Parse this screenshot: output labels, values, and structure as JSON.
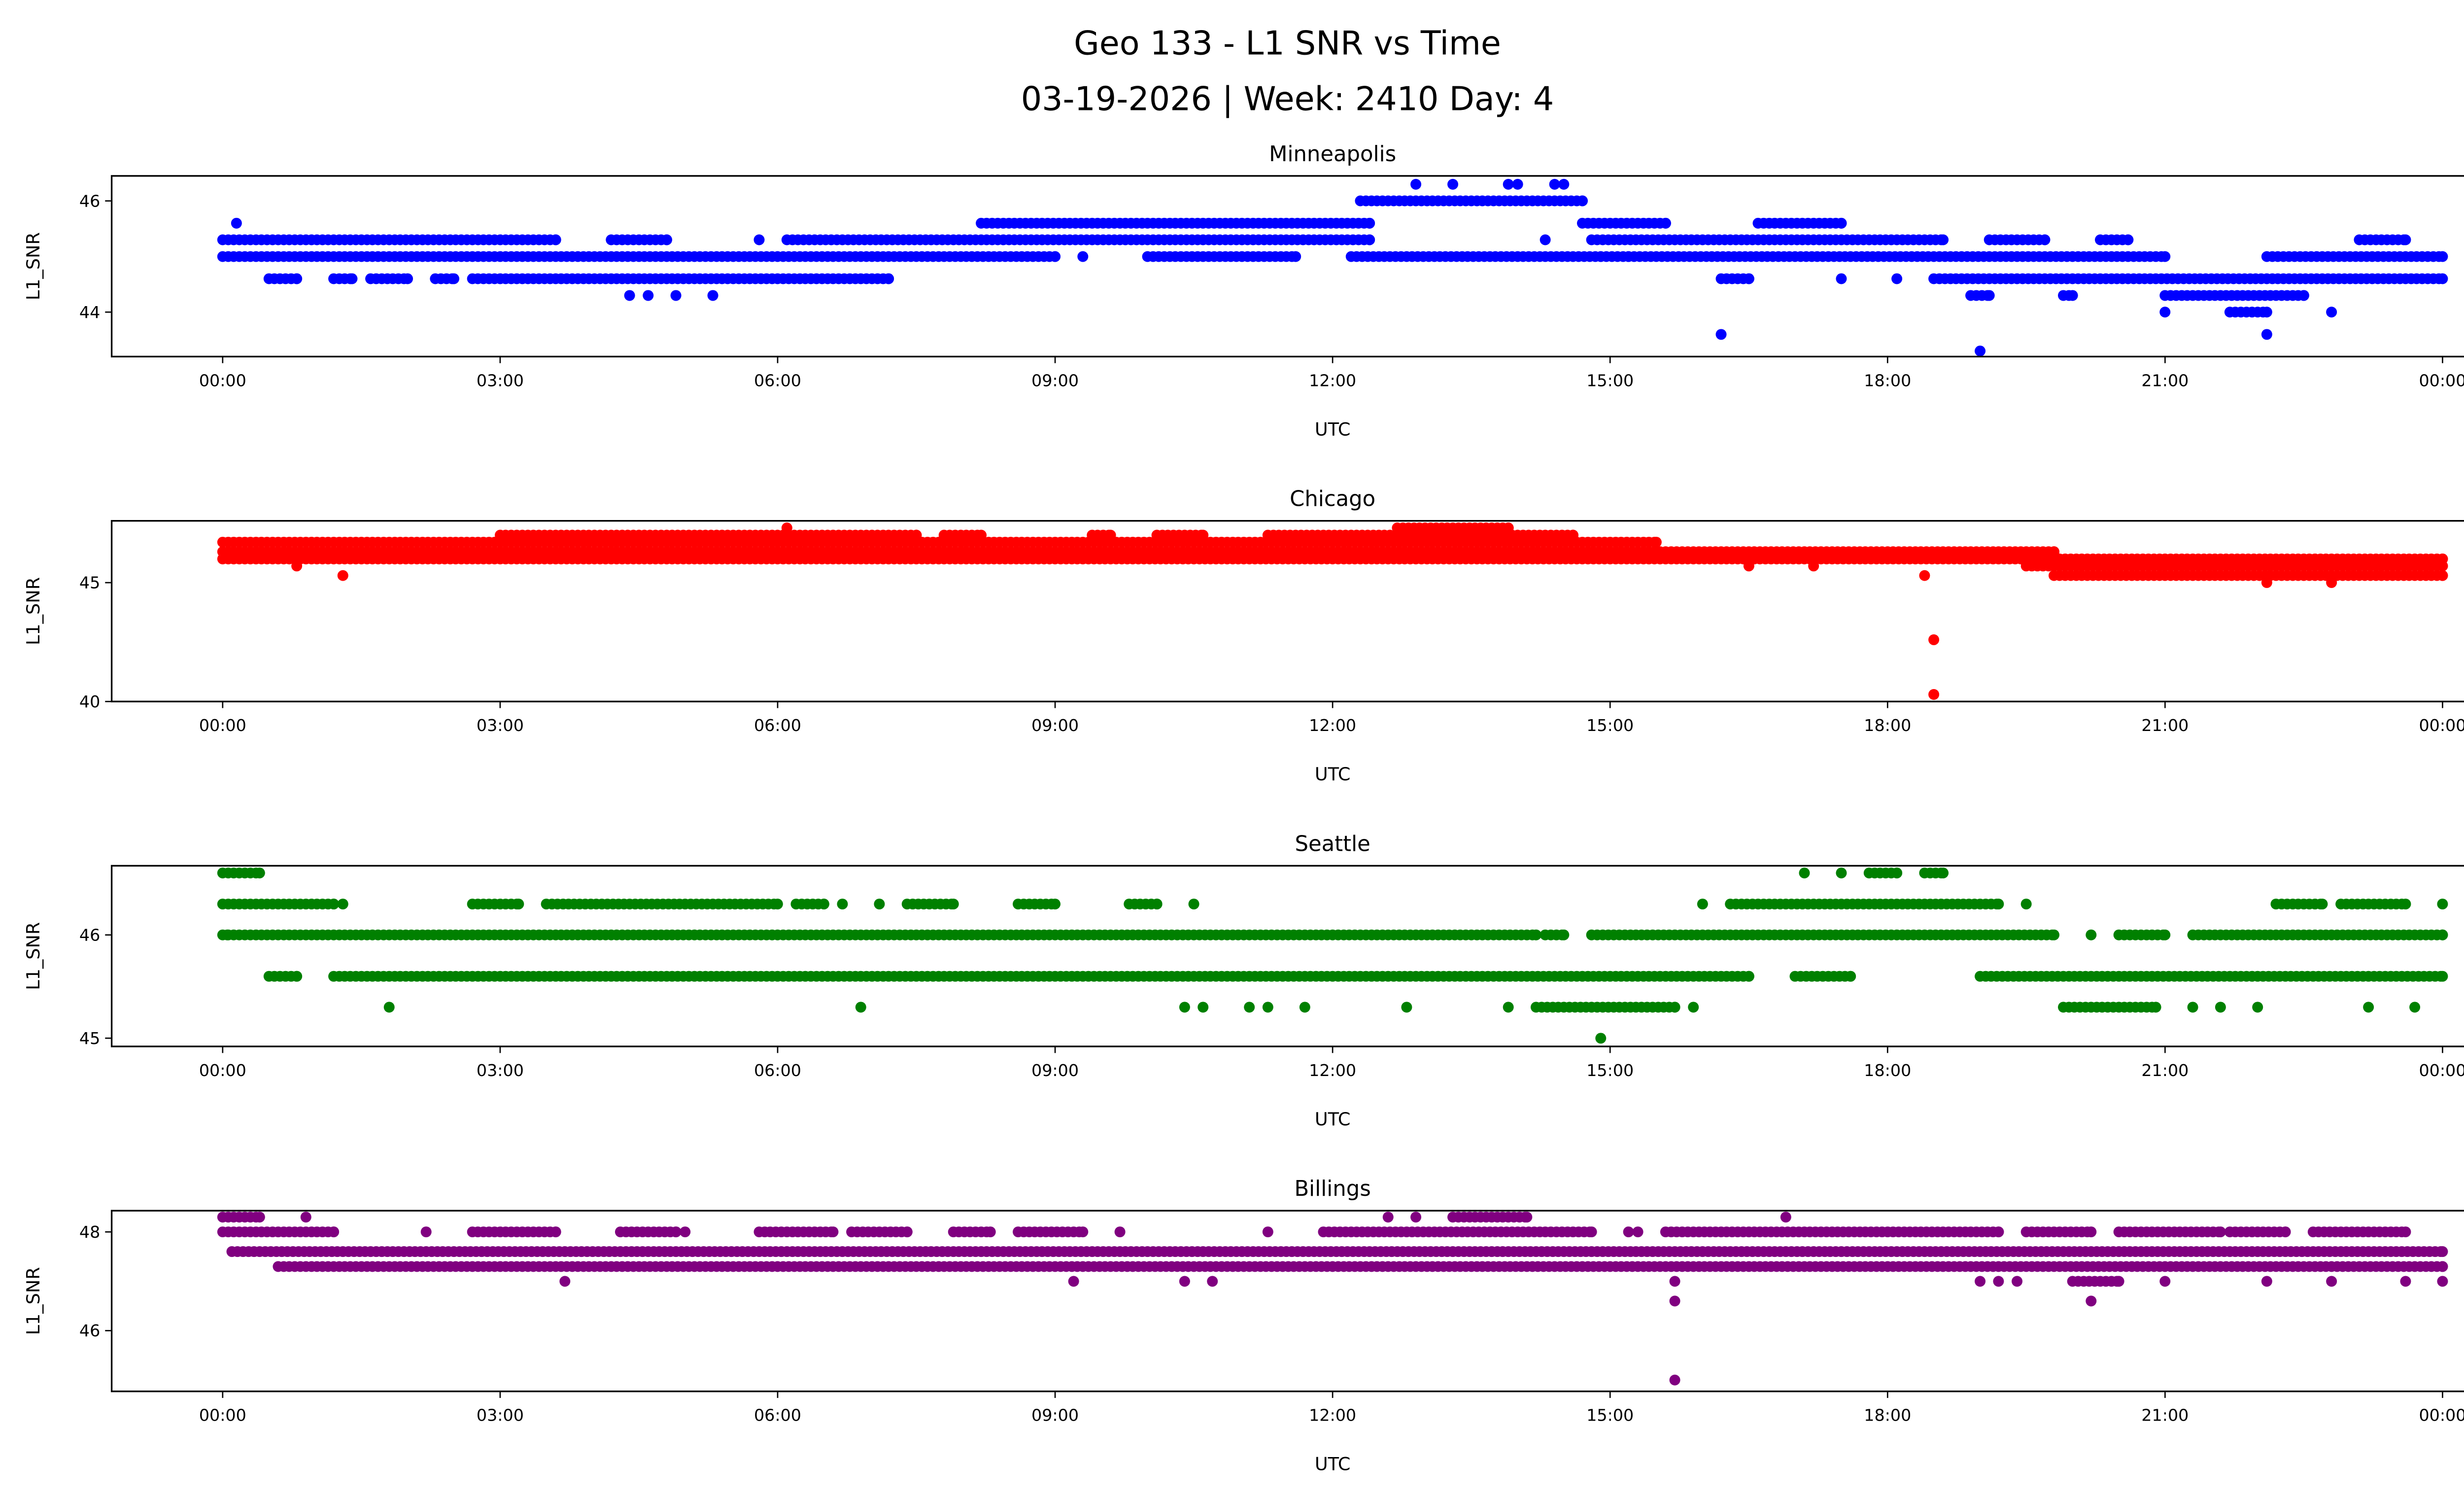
{
  "title_line1": "Geo 133 - L1 SNR vs Time",
  "title_line2": "03-19-2026 | Week: 2410 Day: 4",
  "chart_data": [
    {
      "type": "scatter",
      "title": "Minneapolis",
      "xlabel": "UTC",
      "ylabel": "L1_SNR",
      "color": "#0000ff",
      "xlim": [
        -1.2,
        25.2
      ],
      "ylim": [
        43.2,
        46.45
      ],
      "xticks": [
        0,
        3,
        6,
        9,
        12,
        15,
        18,
        21,
        24
      ],
      "xtick_labels": [
        "00:00",
        "03:00",
        "06:00",
        "09:00",
        "12:00",
        "15:00",
        "18:00",
        "21:00",
        "00:00"
      ],
      "yticks": [
        44,
        46
      ],
      "ytick_labels": [
        "44",
        "46"
      ],
      "bands": [
        {
          "y": 46.0,
          "ranges": [
            [
              12.3,
              14.7
            ]
          ]
        },
        {
          "y": 45.6,
          "ranges": [
            [
              8.2,
              12.4
            ],
            [
              14.7,
              15.6
            ],
            [
              16.6,
              17.5
            ]
          ]
        },
        {
          "y": 45.3,
          "ranges": [
            [
              0,
              3.6
            ],
            [
              4.2,
              4.8
            ],
            [
              6.1,
              12.4
            ],
            [
              14.8,
              18.6
            ],
            [
              19.1,
              19.7
            ],
            [
              20.3,
              20.6
            ],
            [
              23.1,
              23.6
            ]
          ]
        },
        {
          "y": 45.0,
          "ranges": [
            [
              0,
              9.0
            ],
            [
              10.0,
              11.6
            ],
            [
              12.2,
              21.0
            ],
            [
              22.1,
              24.0
            ]
          ]
        },
        {
          "y": 44.6,
          "ranges": [
            [
              0.5,
              0.8
            ],
            [
              1.2,
              1.4
            ],
            [
              1.6,
              2.0
            ],
            [
              2.3,
              2.5
            ],
            [
              2.7,
              7.2
            ],
            [
              16.2,
              16.5
            ],
            [
              18.5,
              24.0
            ]
          ]
        },
        {
          "y": 44.3,
          "ranges": [
            [
              18.9,
              19.1
            ],
            [
              19.9,
              20.0
            ],
            [
              21.0,
              22.5
            ]
          ]
        },
        {
          "y": 44.0,
          "ranges": [
            [
              21.7,
              22.1
            ]
          ]
        }
      ],
      "points": [
        [
          0.15,
          45.6
        ],
        [
          12.9,
          46.3
        ],
        [
          13.3,
          46.3
        ],
        [
          13.9,
          46.3
        ],
        [
          14.0,
          46.3
        ],
        [
          14.4,
          46.3
        ],
        [
          14.5,
          46.3
        ],
        [
          17.5,
          44.6
        ],
        [
          18.1,
          44.6
        ],
        [
          4.4,
          44.3
        ],
        [
          4.6,
          44.3
        ],
        [
          4.9,
          44.3
        ],
        [
          5.3,
          44.3
        ],
        [
          21.0,
          44.0
        ],
        [
          22.8,
          44.0
        ],
        [
          16.2,
          43.6
        ],
        [
          22.1,
          43.6
        ],
        [
          19.0,
          43.3
        ],
        [
          5.8,
          45.3
        ],
        [
          9.3,
          45.0
        ],
        [
          14.3,
          45.3
        ],
        [
          14.9,
          45.0
        ],
        [
          15.2,
          45.0
        ]
      ]
    },
    {
      "type": "scatter",
      "title": "Chicago",
      "xlabel": "UTC",
      "ylabel": "L1_SNR",
      "color": "#ff0000",
      "xlim": [
        -1.2,
        25.2
      ],
      "ylim": [
        40.0,
        47.6
      ],
      "xticks": [
        0,
        3,
        6,
        9,
        12,
        15,
        18,
        21,
        24
      ],
      "xtick_labels": [
        "00:00",
        "03:00",
        "06:00",
        "09:00",
        "12:00",
        "15:00",
        "18:00",
        "21:00",
        "00:00"
      ],
      "yticks": [
        40,
        45
      ],
      "ytick_labels": [
        "40",
        "45"
      ],
      "bands": [
        {
          "y": 47.3,
          "ranges": [
            [
              12.7,
              13.9
            ]
          ]
        },
        {
          "y": 47.0,
          "ranges": [
            [
              3.0,
              7.5
            ],
            [
              7.8,
              8.2
            ],
            [
              9.4,
              9.6
            ],
            [
              10.1,
              10.6
            ],
            [
              11.3,
              14.6
            ]
          ]
        },
        {
          "y": 46.7,
          "ranges": [
            [
              0,
              15.5
            ]
          ]
        },
        {
          "y": 46.3,
          "ranges": [
            [
              0,
              19.8
            ]
          ]
        },
        {
          "y": 46.0,
          "ranges": [
            [
              0,
              24
            ]
          ]
        },
        {
          "y": 45.7,
          "ranges": [
            [
              19.5,
              24
            ]
          ]
        },
        {
          "y": 45.3,
          "ranges": [
            [
              19.8,
              24
            ]
          ]
        }
      ],
      "points": [
        [
          6.1,
          47.3
        ],
        [
          1.3,
          45.3
        ],
        [
          0.8,
          45.7
        ],
        [
          16.5,
          45.7
        ],
        [
          17.2,
          45.7
        ],
        [
          18.5,
          42.6
        ],
        [
          18.5,
          40.3
        ],
        [
          22.1,
          45.0
        ],
        [
          22.8,
          45.0
        ],
        [
          18.4,
          45.3
        ]
      ]
    },
    {
      "type": "scatter",
      "title": "Seattle",
      "xlabel": "UTC",
      "ylabel": "L1_SNR",
      "color": "#008000",
      "xlim": [
        -1.2,
        25.2
      ],
      "ylim": [
        44.92,
        46.67
      ],
      "xticks": [
        0,
        3,
        6,
        9,
        12,
        15,
        18,
        21,
        24
      ],
      "xtick_labels": [
        "00:00",
        "03:00",
        "06:00",
        "09:00",
        "12:00",
        "15:00",
        "18:00",
        "21:00",
        "00:00"
      ],
      "yticks": [
        45,
        46
      ],
      "ytick_labels": [
        "45",
        "46"
      ],
      "bands": [
        {
          "y": 46.6,
          "ranges": [
            [
              0,
              0.4
            ],
            [
              17.8,
              18.1
            ],
            [
              18.4,
              18.6
            ]
          ]
        },
        {
          "y": 46.3,
          "ranges": [
            [
              0,
              1.2
            ],
            [
              2.7,
              3.2
            ],
            [
              3.5,
              6.0
            ],
            [
              6.2,
              6.5
            ],
            [
              7.4,
              7.9
            ],
            [
              8.6,
              9.0
            ],
            [
              9.8,
              10.1
            ],
            [
              16.3,
              19.2
            ],
            [
              22.2,
              22.7
            ],
            [
              22.9,
              23.6
            ]
          ]
        },
        {
          "y": 46.0,
          "ranges": [
            [
              0,
              14.2
            ],
            [
              14.3,
              14.5
            ],
            [
              14.8,
              19.8
            ],
            [
              20.5,
              21.0
            ],
            [
              21.3,
              24
            ]
          ]
        },
        {
          "y": 45.6,
          "ranges": [
            [
              0.5,
              0.8
            ],
            [
              1.2,
              16.5
            ],
            [
              17.0,
              17.6
            ],
            [
              19.0,
              24
            ]
          ]
        },
        {
          "y": 45.3,
          "ranges": [
            [
              14.2,
              15.7
            ],
            [
              19.9,
              20.9
            ]
          ]
        }
      ],
      "points": [
        [
          17.1,
          46.6
        ],
        [
          17.5,
          46.6
        ],
        [
          1.3,
          46.3
        ],
        [
          6.7,
          46.3
        ],
        [
          7.1,
          46.3
        ],
        [
          10.5,
          46.3
        ],
        [
          16.0,
          46.3
        ],
        [
          19.5,
          46.3
        ],
        [
          24.0,
          46.3
        ],
        [
          0.05,
          46.0
        ],
        [
          20.2,
          46.0
        ],
        [
          1.8,
          45.3
        ],
        [
          6.9,
          45.3
        ],
        [
          10.4,
          45.3
        ],
        [
          10.6,
          45.3
        ],
        [
          11.1,
          45.3
        ],
        [
          11.3,
          45.3
        ],
        [
          11.7,
          45.3
        ],
        [
          12.8,
          45.3
        ],
        [
          13.9,
          45.3
        ],
        [
          15.9,
          45.3
        ],
        [
          21.3,
          45.3
        ],
        [
          21.6,
          45.3
        ],
        [
          22.0,
          45.3
        ],
        [
          23.2,
          45.3
        ],
        [
          23.7,
          45.3
        ],
        [
          14.9,
          45.0
        ]
      ]
    },
    {
      "type": "scatter",
      "title": "Billings",
      "xlabel": "UTC",
      "ylabel": "L1_SNR",
      "color": "#800080",
      "xlim": [
        -1.2,
        25.2
      ],
      "ylim": [
        44.77,
        48.43
      ],
      "xticks": [
        0,
        3,
        6,
        9,
        12,
        15,
        18,
        21,
        24
      ],
      "xtick_labels": [
        "00:00",
        "03:00",
        "06:00",
        "09:00",
        "12:00",
        "15:00",
        "18:00",
        "21:00",
        "00:00"
      ],
      "yticks": [
        46,
        48
      ],
      "ytick_labels": [
        "46",
        "48"
      ],
      "bands": [
        {
          "y": 48.3,
          "ranges": [
            [
              0,
              0.4
            ],
            [
              13.3,
              14.1
            ]
          ]
        },
        {
          "y": 48.0,
          "ranges": [
            [
              0,
              1.2
            ],
            [
              2.7,
              3.6
            ],
            [
              4.3,
              4.9
            ],
            [
              5.8,
              6.6
            ],
            [
              6.8,
              7.4
            ],
            [
              7.9,
              8.3
            ],
            [
              8.6,
              9.3
            ],
            [
              11.9,
              14.8
            ],
            [
              15.6,
              19.2
            ],
            [
              19.5,
              20.2
            ],
            [
              20.5,
              21.6
            ],
            [
              21.7,
              22.3
            ],
            [
              22.6,
              23.6
            ]
          ]
        },
        {
          "y": 47.6,
          "ranges": [
            [
              0.1,
              24
            ]
          ]
        },
        {
          "y": 47.3,
          "ranges": [
            [
              0.6,
              24
            ]
          ]
        },
        {
          "y": 47.0,
          "ranges": [
            [
              20.0,
              20.5
            ]
          ]
        }
      ],
      "points": [
        [
          0.9,
          48.3
        ],
        [
          12.6,
          48.3
        ],
        [
          12.9,
          48.3
        ],
        [
          16.9,
          48.3
        ],
        [
          2.2,
          48.0
        ],
        [
          5.0,
          48.0
        ],
        [
          9.7,
          48.0
        ],
        [
          11.3,
          48.0
        ],
        [
          15.2,
          48.0
        ],
        [
          15.3,
          48.0
        ],
        [
          3.7,
          47.0
        ],
        [
          9.2,
          47.0
        ],
        [
          10.4,
          47.0
        ],
        [
          10.7,
          47.0
        ],
        [
          15.7,
          47.0
        ],
        [
          19.0,
          47.0
        ],
        [
          19.2,
          47.0
        ],
        [
          19.4,
          47.0
        ],
        [
          21.0,
          47.0
        ],
        [
          22.1,
          47.0
        ],
        [
          22.8,
          47.0
        ],
        [
          23.6,
          47.0
        ],
        [
          24.0,
          47.0
        ],
        [
          15.7,
          46.6
        ],
        [
          20.2,
          46.6
        ],
        [
          15.7,
          45.0
        ]
      ]
    }
  ]
}
